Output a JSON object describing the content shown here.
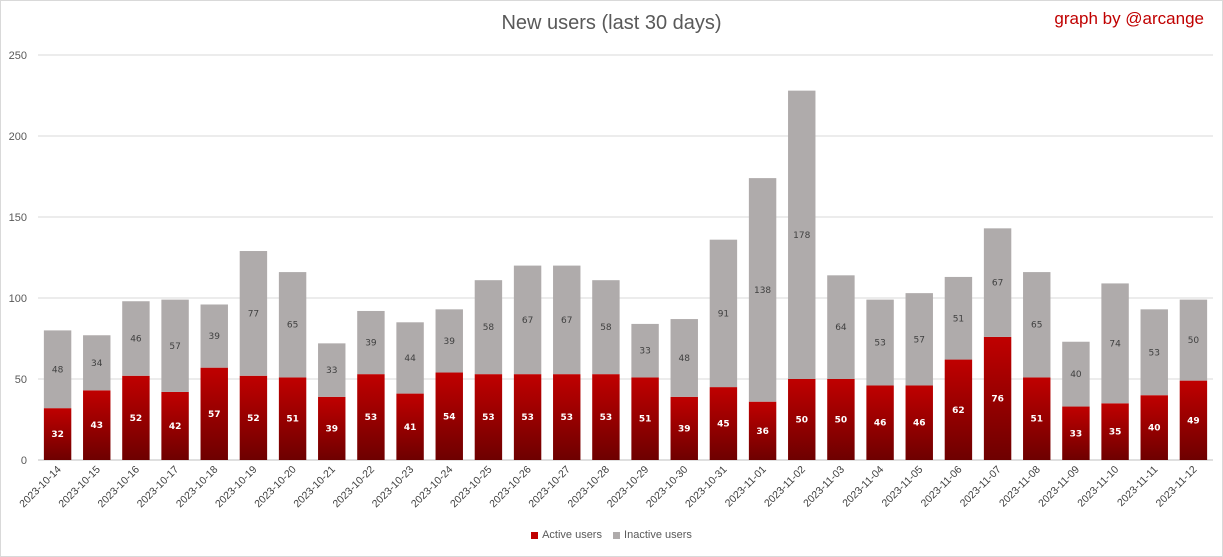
{
  "chart_data": {
    "type": "bar",
    "stacked": true,
    "title": "New users (last 30 days)",
    "credit": "graph by @arcange",
    "categories": [
      "2023-10-14",
      "2023-10-15",
      "2023-10-16",
      "2023-10-17",
      "2023-10-18",
      "2023-10-19",
      "2023-10-20",
      "2023-10-21",
      "2023-10-22",
      "2023-10-23",
      "2023-10-24",
      "2023-10-25",
      "2023-10-26",
      "2023-10-27",
      "2023-10-28",
      "2023-10-29",
      "2023-10-30",
      "2023-10-31",
      "2023-11-01",
      "2023-11-02",
      "2023-11-03",
      "2023-11-04",
      "2023-11-05",
      "2023-11-06",
      "2023-11-07",
      "2023-11-08",
      "2023-11-09",
      "2023-11-10",
      "2023-11-11",
      "2023-11-12"
    ],
    "series": [
      {
        "name": "Active users",
        "color": "#c00000",
        "values": [
          32,
          43,
          52,
          42,
          57,
          52,
          51,
          39,
          53,
          41,
          54,
          53,
          53,
          53,
          53,
          51,
          39,
          45,
          36,
          50,
          50,
          46,
          46,
          62,
          76,
          51,
          33,
          35,
          40,
          49
        ]
      },
      {
        "name": "Inactive users",
        "color": "#afabab",
        "values": [
          48,
          34,
          46,
          57,
          39,
          77,
          65,
          33,
          39,
          44,
          39,
          58,
          67,
          67,
          58,
          33,
          48,
          91,
          138,
          178,
          64,
          53,
          57,
          51,
          67,
          65,
          40,
          74,
          53,
          50
        ]
      }
    ],
    "ylim": [
      0,
      250
    ],
    "yticks": [
      0,
      50,
      100,
      150,
      200,
      250
    ],
    "grid": true,
    "legend": "bottom",
    "xlabel": "",
    "ylabel": ""
  }
}
